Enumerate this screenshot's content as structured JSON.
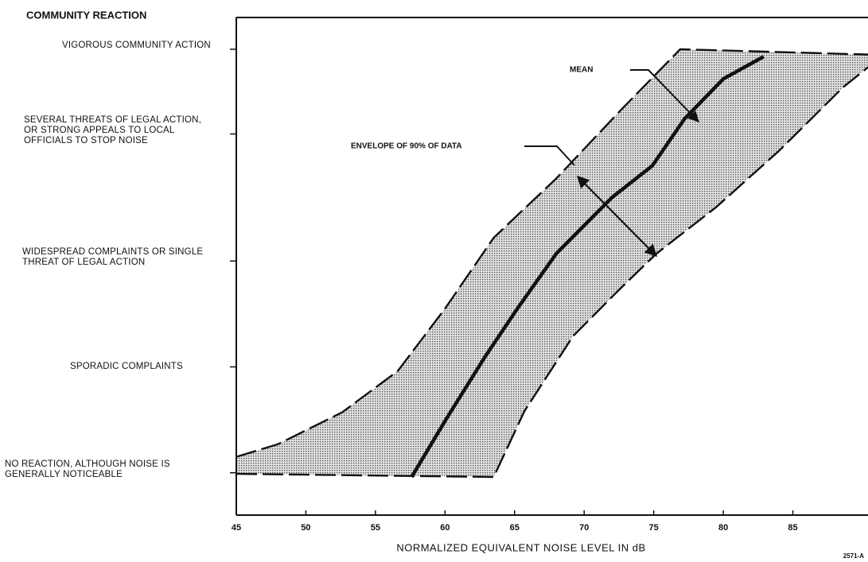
{
  "chart_data": {
    "type": "line",
    "ylabel": "COMMUNITY REACTION",
    "xlabel": "NORMALIZED EQUIVALENT NOISE LEVEL IN dB",
    "xlim": [
      45,
      90.4
    ],
    "xticks": [
      45,
      50,
      55,
      60,
      65,
      70,
      75,
      80,
      85
    ],
    "ylim": [
      -0.4,
      4.3
    ],
    "yticks": [
      {
        "value": 0,
        "label": "NO REACTION, ALTHOUGH NOISE IS GENERALLY NOTICEABLE"
      },
      {
        "value": 1,
        "label": "SPORADIC COMPLAINTS"
      },
      {
        "value": 2,
        "label": "WIDESPREAD COMPLAINTS OR SINGLE THREAT OF LEGAL ACTION"
      },
      {
        "value": 3.2,
        "label": "SEVERAL THREATS OF LEGAL ACTION, OR STRONG APPEALS TO LOCAL OFFICIALS TO STOP NOISE"
      },
      {
        "value": 4,
        "label": "VIGOROUS COMMUNITY ACTION"
      }
    ],
    "series": [
      {
        "line": "dashed",
        "color": "#111",
        "x": [
          45,
          48.0,
          52.6,
          56.6,
          60.0,
          63.5,
          68.0,
          72.6,
          76.9,
          90.4
        ],
        "y": [
          0.15,
          0.27,
          0.57,
          0.96,
          1.55,
          2.22,
          2.78,
          3.42,
          4.0,
          3.95
        ]
      },
      {
        "line": "dashed",
        "color": "#111",
        "x": [
          45,
          63.5,
          65.7,
          69.2,
          72.6,
          75.2,
          79.5,
          84.0,
          88.6,
          90.4
        ],
        "y": [
          -0.01,
          -0.04,
          0.58,
          1.29,
          1.74,
          2.07,
          2.51,
          3.04,
          3.64,
          3.83
        ]
      },
      {
        "line": "solid",
        "color": "#111",
        "x": [
          57.6,
          60.1,
          62.9,
          65.2,
          68.0,
          72.0,
          74.9,
          77.2,
          80.0,
          82.9
        ],
        "y": [
          -0.04,
          0.51,
          1.1,
          1.55,
          2.07,
          2.6,
          2.9,
          3.34,
          3.72,
          3.93
        ]
      }
    ],
    "annotations": [
      "MEAN",
      "ENVELOPE OF 90% OF DATA",
      "2571-A"
    ]
  }
}
